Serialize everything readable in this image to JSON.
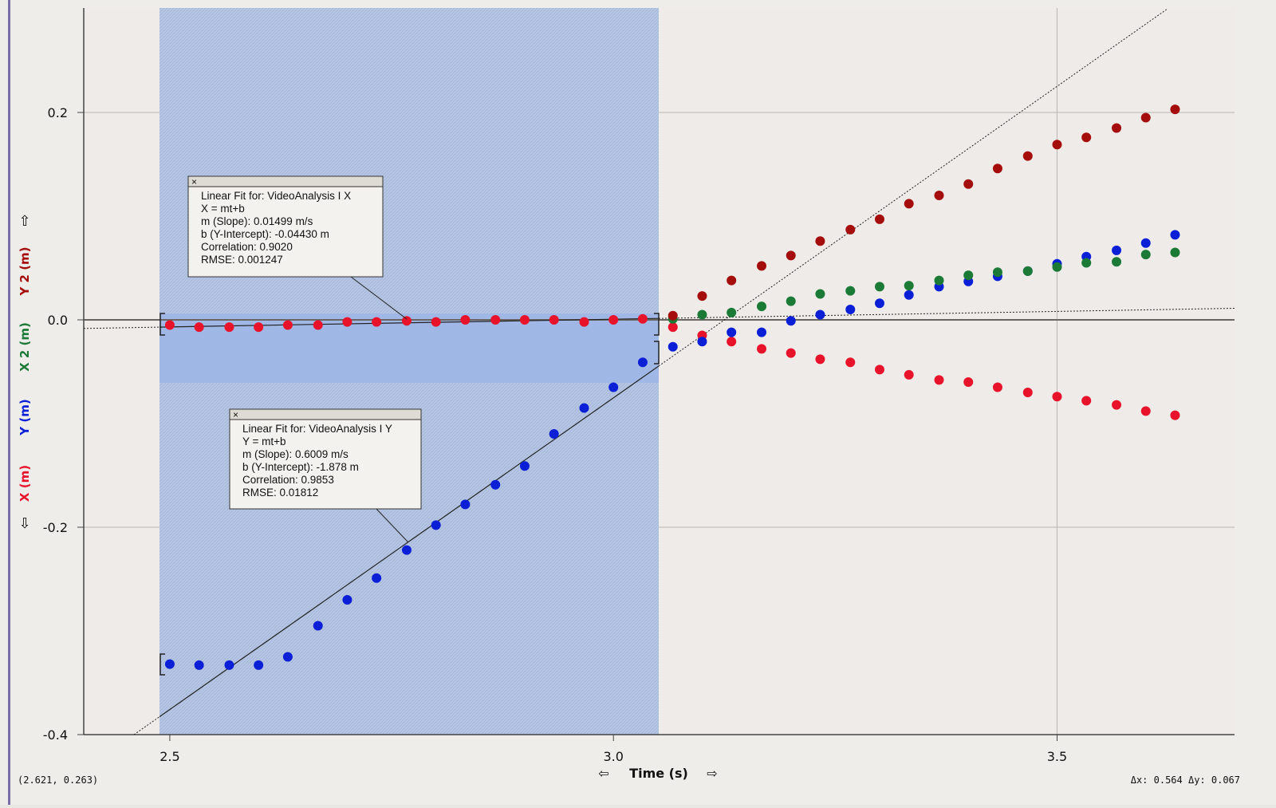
{
  "chart_data": {
    "type": "scatter",
    "x_label": "Time (s)",
    "x": [
      2.5,
      2.533,
      2.567,
      2.6,
      2.633,
      2.667,
      2.7,
      2.733,
      2.767,
      2.8,
      2.833,
      2.867,
      2.9,
      2.933,
      2.967,
      3.0,
      3.033,
      3.067,
      3.1,
      3.133,
      3.167,
      3.2,
      3.233,
      3.267,
      3.3,
      3.333,
      3.367,
      3.4,
      3.433,
      3.467,
      3.5,
      3.533,
      3.567,
      3.6,
      3.633
    ],
    "series": [
      {
        "name": "X (m)",
        "color": "#e8132b",
        "values": [
          -0.005,
          -0.007,
          -0.007,
          -0.007,
          -0.005,
          -0.005,
          -0.002,
          -0.002,
          -0.001,
          -0.002,
          0,
          0,
          0,
          0,
          -0.002,
          0,
          0.001,
          -0.007,
          -0.015,
          -0.021,
          -0.028,
          -0.032,
          -0.038,
          -0.041,
          -0.048,
          -0.053,
          -0.058,
          -0.06,
          -0.065,
          -0.07,
          -0.074,
          -0.078,
          -0.082,
          -0.088,
          -0.092
        ]
      },
      {
        "name": "Y (m)",
        "color": "#0a1fd6",
        "values": [
          -0.332,
          -0.333,
          -0.333,
          -0.333,
          -0.325,
          -0.295,
          -0.27,
          -0.249,
          -0.222,
          -0.198,
          -0.178,
          -0.159,
          -0.141,
          -0.11,
          -0.085,
          -0.065,
          -0.041,
          -0.026,
          -0.021,
          -0.012,
          -0.012,
          -0.001,
          0.005,
          0.01,
          0.016,
          0.024,
          0.032,
          0.037,
          0.042,
          0.047,
          0.054,
          0.061,
          0.067,
          0.074,
          0.082
        ]
      },
      {
        "name": "X 2 (m)",
        "color": "#1a7a36",
        "values": [
          null,
          null,
          null,
          null,
          null,
          null,
          null,
          null,
          null,
          null,
          null,
          null,
          null,
          null,
          null,
          null,
          null,
          0.001,
          0.005,
          0.007,
          0.013,
          0.018,
          0.025,
          0.028,
          0.032,
          0.033,
          0.038,
          0.043,
          0.046,
          0.047,
          0.051,
          0.055,
          0.056,
          0.063,
          0.065
        ]
      },
      {
        "name": "Y 2 (m)",
        "color": "#a50c0c",
        "values": [
          null,
          null,
          null,
          null,
          null,
          null,
          null,
          null,
          null,
          null,
          null,
          null,
          null,
          null,
          null,
          null,
          null,
          0.004,
          0.023,
          0.038,
          0.052,
          0.062,
          0.076,
          0.087,
          0.097,
          0.112,
          0.12,
          0.131,
          0.146,
          0.158,
          0.169,
          0.176,
          0.185,
          0.195,
          0.203
        ]
      }
    ],
    "xlim": [
      2.403,
      3.7
    ],
    "xticks": [
      2.5,
      {
        "value": 3.0,
        "label": "3.0"
      },
      3.5
    ],
    "ylim": [
      -0.4,
      0.3
    ],
    "yticks": [
      0.2,
      {
        "value": 0,
        "label": "0.0"
      },
      -0.2,
      -0.4
    ],
    "grid": true,
    "annotations": [
      {
        "lines": [
          "Linear Fit for:  VideoAnalysis I X",
          "X = mt+b",
          "m (Slope): 0.01499 m/s",
          "b (Y-Intercept): -0.04430 m",
          "Correlation: 0.9020",
          "RMSE: 0.001247"
        ]
      },
      {
        "lines": [
          "Linear Fit for:  VideoAnalysis I Y",
          "Y = mt+b",
          "m (Slope): 0.6009 m/s",
          "b (Y-Intercept): -1.878 m",
          "Correlation: 0.9853",
          "RMSE: 0.01812"
        ]
      }
    ],
    "cursor_readout": "(2.621, 0.263)",
    "delta_readout": "Δx: 0.564 Δy: 0.067"
  }
}
